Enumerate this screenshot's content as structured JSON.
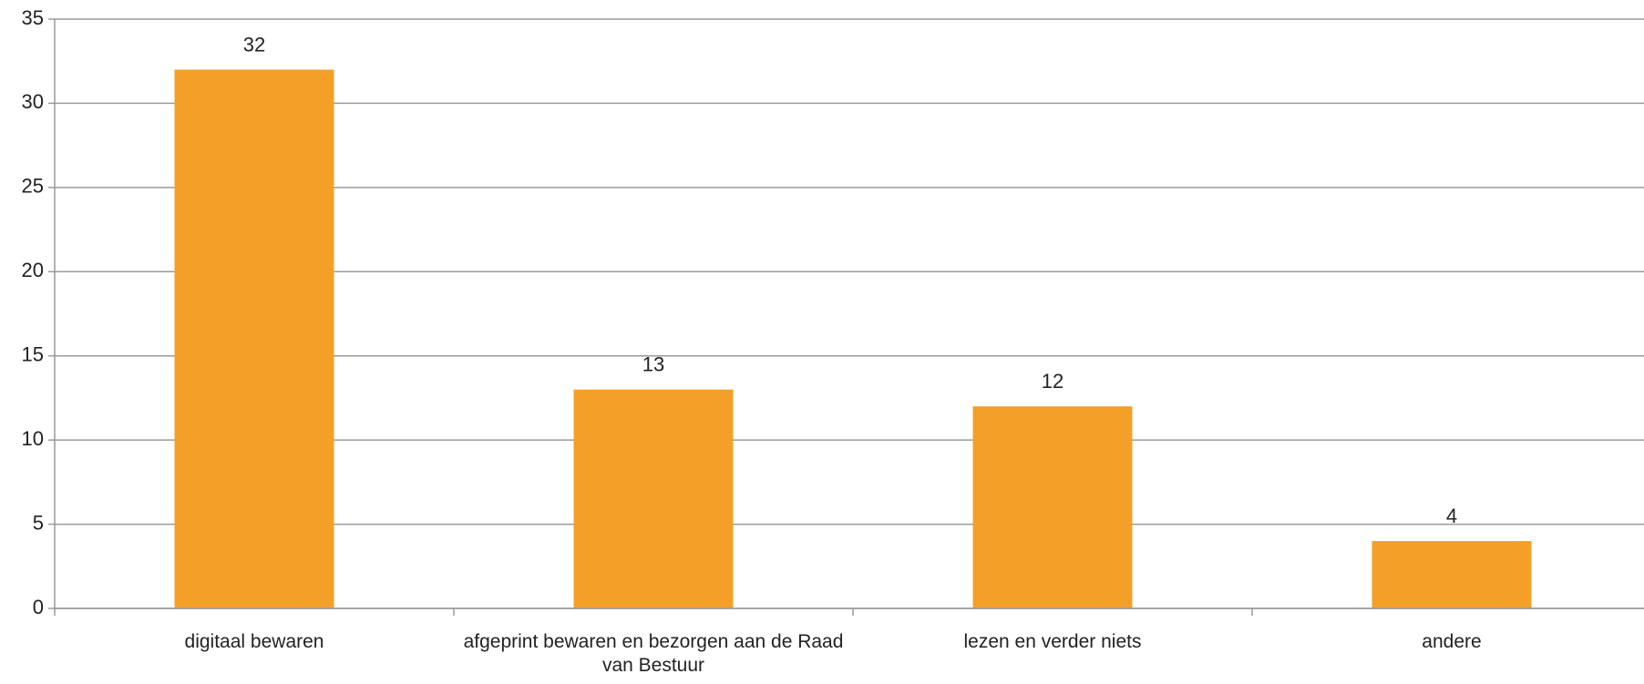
{
  "chart_data": {
    "type": "bar",
    "categories": [
      "digitaal bewaren",
      "afgeprint bewaren en bezorgen aan de Raad van Bestuur",
      "lezen en verder niets",
      "andere"
    ],
    "values": [
      32,
      13,
      12,
      4
    ],
    "color": "#f4a028",
    "ylim": [
      0,
      35
    ],
    "yticks": [
      0,
      5,
      10,
      15,
      20,
      25,
      30,
      35
    ],
    "grid": true
  }
}
